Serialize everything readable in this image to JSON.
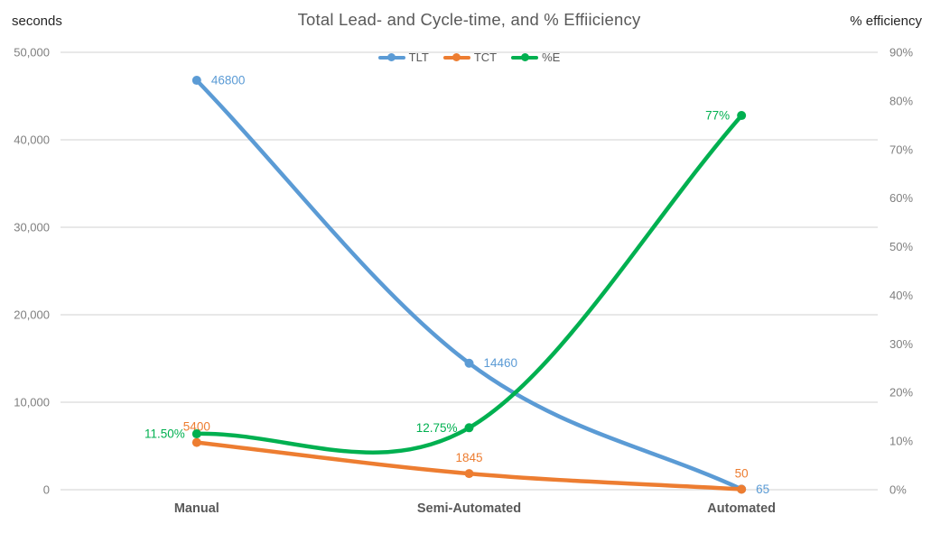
{
  "chart_data": {
    "type": "line",
    "title": "Total Lead- and Cycle-time, and % Effiiciency",
    "smoothed": true,
    "grid": "horizontal",
    "legend_position": "top-center",
    "categories": [
      "Manual",
      "Semi-Automated",
      "Automated"
    ],
    "left_axis": {
      "title": "seconds",
      "min": 0,
      "max": 50000,
      "tick_step": 10000,
      "tick_labels": [
        "50,000",
        "40,000",
        "30,000",
        "20,000",
        "10,000",
        "0"
      ]
    },
    "right_axis": {
      "title": "% efficiency",
      "min": 0,
      "max": 90,
      "tick_step": 10,
      "tick_labels": [
        "90%",
        "80%",
        "70%",
        "60%",
        "50%",
        "40%",
        "30%",
        "20%",
        "10%",
        "0%"
      ]
    },
    "series": [
      {
        "name": "TLT",
        "axis": "left",
        "color": "#5B9BD5",
        "values": [
          46800,
          14460,
          65
        ],
        "labels": [
          "46800",
          "14460",
          "65"
        ],
        "label_placement": "right"
      },
      {
        "name": "TCT",
        "axis": "left",
        "color": "#ED7D31",
        "values": [
          5400,
          1845,
          50
        ],
        "labels": [
          "5400",
          "1845",
          "50"
        ],
        "label_placement": "above"
      },
      {
        "name": "%E",
        "axis": "right",
        "color": "#00B050",
        "values": [
          11.5,
          12.75,
          77
        ],
        "labels": [
          "11.50%",
          "12.75%",
          "77%"
        ],
        "label_placement": "left"
      }
    ],
    "legend": [
      "TLT",
      "TCT",
      "%E"
    ]
  }
}
